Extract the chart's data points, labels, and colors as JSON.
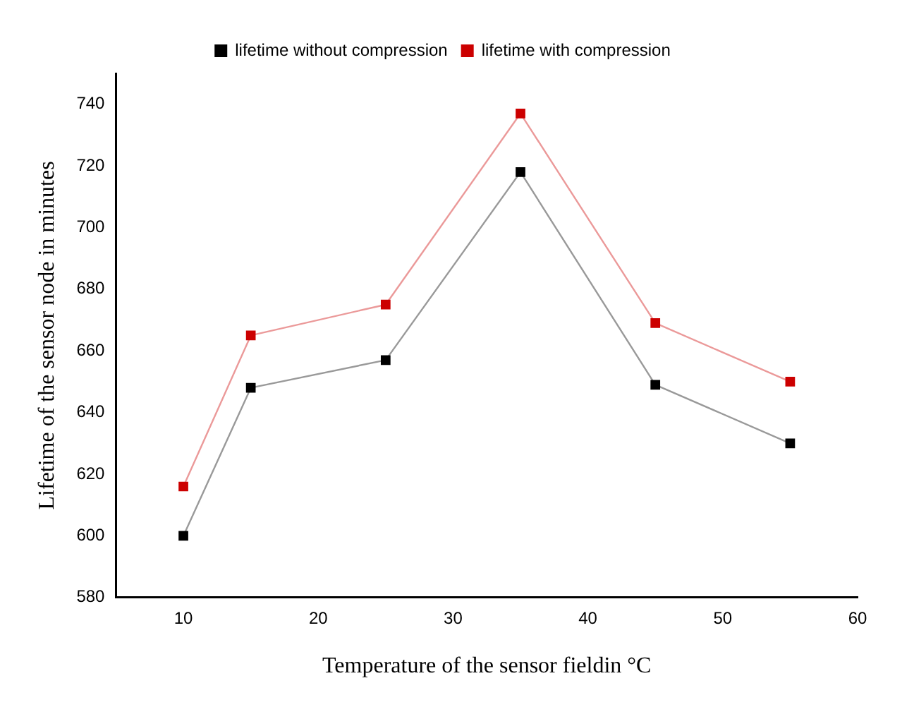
{
  "chart_data": {
    "type": "line",
    "xlabel": "Temperature of the sensor fieldin °C",
    "ylabel": "Lifetime of the sensor node in minutes",
    "x": [
      10,
      15,
      25,
      35,
      45,
      55
    ],
    "series": [
      {
        "name": "lifetime without compression",
        "color": "#000000",
        "values": [
          600,
          648,
          657,
          718,
          649,
          630
        ]
      },
      {
        "name": "lifetime with compression",
        "color": "#cc0000",
        "values": [
          616,
          665,
          675,
          737,
          669,
          650
        ]
      }
    ],
    "xlim": [
      5,
      60
    ],
    "xticks": [
      10,
      20,
      30,
      40,
      50,
      60
    ],
    "ylim": [
      580,
      750
    ],
    "yticks": [
      580,
      600,
      620,
      640,
      660,
      680,
      700,
      720,
      740
    ],
    "grid": false,
    "legend": "top",
    "marker": "square",
    "line_style": "solid"
  }
}
